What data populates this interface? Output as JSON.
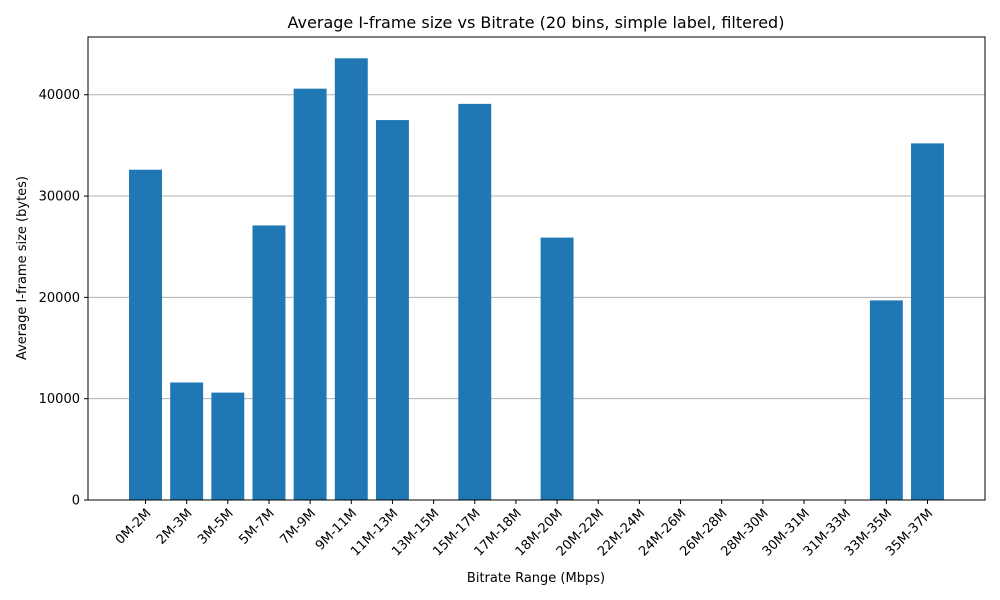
{
  "chart_data": {
    "type": "bar",
    "title": "Average I-frame size vs Bitrate (20 bins, simple label, filtered)",
    "xlabel": "Bitrate Range (Mbps)",
    "ylabel": "Average I-frame size (bytes)",
    "categories": [
      "0M-2M",
      "2M-3M",
      "3M-5M",
      "5M-7M",
      "7M-9M",
      "9M-11M",
      "11M-13M",
      "13M-15M",
      "15M-17M",
      "17M-18M",
      "18M-20M",
      "20M-22M",
      "22M-24M",
      "24M-26M",
      "26M-28M",
      "28M-30M",
      "30M-31M",
      "31M-33M",
      "33M-35M",
      "35M-37M"
    ],
    "values": [
      32600,
      11600,
      10600,
      27100,
      40600,
      43600,
      37500,
      0,
      39100,
      0,
      25900,
      0,
      0,
      0,
      0,
      0,
      0,
      0,
      19700,
      35200
    ],
    "ylim": [
      0,
      45700
    ],
    "yticks": [
      0,
      10000,
      20000,
      30000,
      40000
    ],
    "grid": "y",
    "bar_color": "#1f77b4",
    "grid_color": "#b0b0b0"
  }
}
